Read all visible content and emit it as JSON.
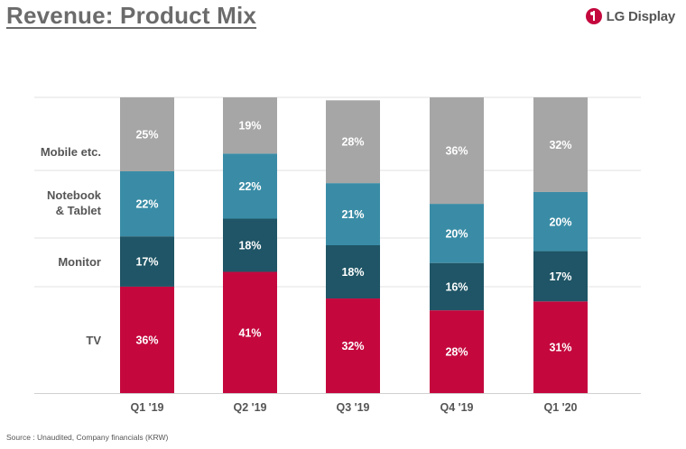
{
  "header": {
    "title": "Revenue: Product Mix",
    "brand_name": "LG Display",
    "brand_icon": "lg-logo-icon"
  },
  "footer": {
    "source": "Source : Unaudited, Company financials (KRW)"
  },
  "chart_data": {
    "type": "bar",
    "stacked": true,
    "percent_stacked": true,
    "categories": [
      "Q1 '19",
      "Q2 '19",
      "Q3 '19",
      "Q4 '19",
      "Q1 '20"
    ],
    "series": [
      {
        "name": "TV",
        "values": [
          36,
          41,
          32,
          28,
          31
        ],
        "color": "#c4083e",
        "labels": [
          "36%",
          "41%",
          "32%",
          "28%",
          "31%"
        ]
      },
      {
        "name": "Monitor",
        "values": [
          17,
          18,
          18,
          16,
          17
        ],
        "color": "#1f5566",
        "labels": [
          "17%",
          "18%",
          "18%",
          "16%",
          "17%"
        ]
      },
      {
        "name": "Notebook & Tablet",
        "values": [
          22,
          22,
          21,
          20,
          20
        ],
        "color": "#3a8ca6",
        "labels": [
          "22%",
          "22%",
          "21%",
          "20%",
          "20%"
        ]
      },
      {
        "name": "Mobile etc.",
        "values": [
          25,
          19,
          28,
          36,
          32
        ],
        "color": "#a6a6a6",
        "labels": [
          "25%",
          "19%",
          "28%",
          "36%",
          "32%"
        ]
      }
    ],
    "row_labels": [
      "TV",
      "Monitor",
      "Notebook",
      "& Tablet",
      "Mobile etc."
    ],
    "ylim": [
      0,
      100
    ],
    "grid": true,
    "legend": "left"
  }
}
